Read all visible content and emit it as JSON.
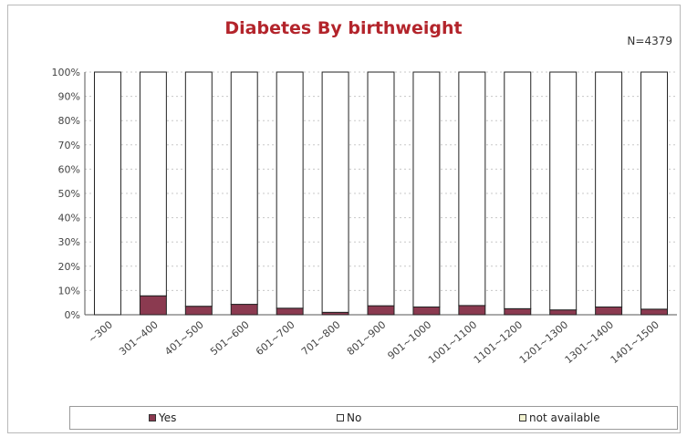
{
  "chart_data": {
    "type": "bar",
    "stacked": true,
    "title": "Diabetes By birthweight",
    "annotation": "N=4379",
    "categories": [
      "~300",
      "301~400",
      "401~500",
      "501~600",
      "601~700",
      "701~800",
      "801~900",
      "901~1000",
      "1001~1100",
      "1101~1200",
      "1201~1300",
      "1301~1400",
      "1401~1500"
    ],
    "series": [
      {
        "name": "Yes",
        "color": "#8b3a50",
        "values": [
          0,
          7.8,
          3.5,
          4.3,
          2.7,
          1.0,
          3.7,
          3.2,
          3.8,
          2.5,
          2.0,
          3.2,
          2.3
        ]
      },
      {
        "name": "No",
        "color": "#ffffff",
        "values": [
          100,
          92.2,
          96.5,
          95.7,
          97.3,
          99.0,
          96.3,
          96.8,
          96.2,
          97.5,
          98.0,
          96.8,
          97.7
        ]
      },
      {
        "name": "not available",
        "color": "#f2f2d0",
        "values": [
          0,
          0,
          0,
          0,
          0,
          0,
          0,
          0,
          0,
          0,
          0,
          0,
          0
        ]
      }
    ],
    "yticks": [
      "0%",
      "10%",
      "20%",
      "30%",
      "40%",
      "50%",
      "60%",
      "70%",
      "80%",
      "90%",
      "100%"
    ],
    "ylim": [
      0,
      100
    ],
    "grid": true,
    "legend_position": "bottom"
  }
}
